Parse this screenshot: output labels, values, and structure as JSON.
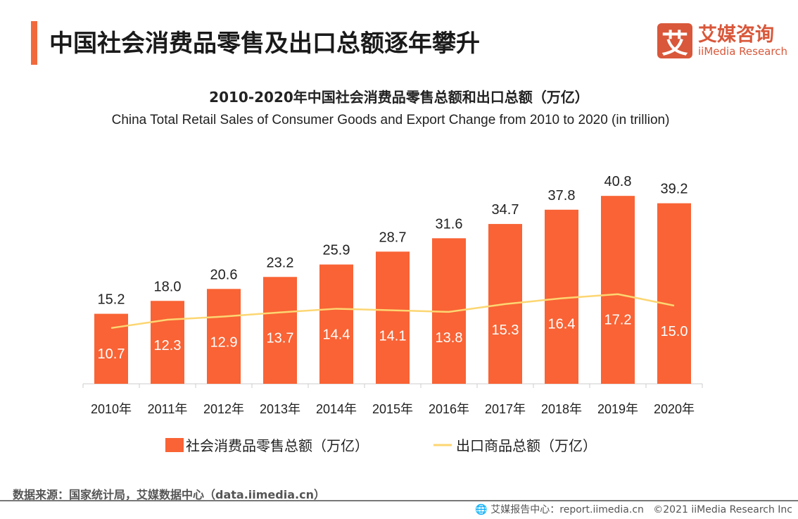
{
  "header": {
    "title": "中国社会消费品零售及出口总额逐年攀升",
    "logo_cn": "艾媒咨询",
    "logo_en": "iiMedia Research",
    "logo_mark": "艾"
  },
  "chart_data": {
    "type": "bar",
    "title": "2010-2020年中国社会消费品零售总额和出口总额（万亿）",
    "subtitle": "China Total Retail Sales of Consumer Goods and Export Change from 2010 to 2020 (in trillion)",
    "categories": [
      "2010年",
      "2011年",
      "2012年",
      "2013年",
      "2014年",
      "2015年",
      "2016年",
      "2017年",
      "2018年",
      "2019年",
      "2020年"
    ],
    "series": [
      {
        "name": "社会消费品零售总额（万亿）",
        "type": "bar",
        "color": "#f96335",
        "values": [
          15.2,
          18.0,
          20.6,
          23.2,
          25.9,
          28.7,
          31.6,
          34.7,
          37.8,
          40.8,
          39.2
        ]
      },
      {
        "name": "出口商品总额（万亿）",
        "type": "line",
        "color": "#fcd672",
        "values": [
          10.7,
          12.3,
          12.9,
          13.7,
          14.4,
          14.1,
          13.8,
          15.3,
          16.4,
          17.2,
          15.0
        ]
      }
    ],
    "legend": "bottom"
  },
  "footer": {
    "source": "数据来源：国家统计局，艾媒数据中心（data.iimedia.cn）",
    "report": "艾媒报告中心：report.iimedia.cn",
    "copyright": "©2021  iiMedia Research  Inc"
  }
}
